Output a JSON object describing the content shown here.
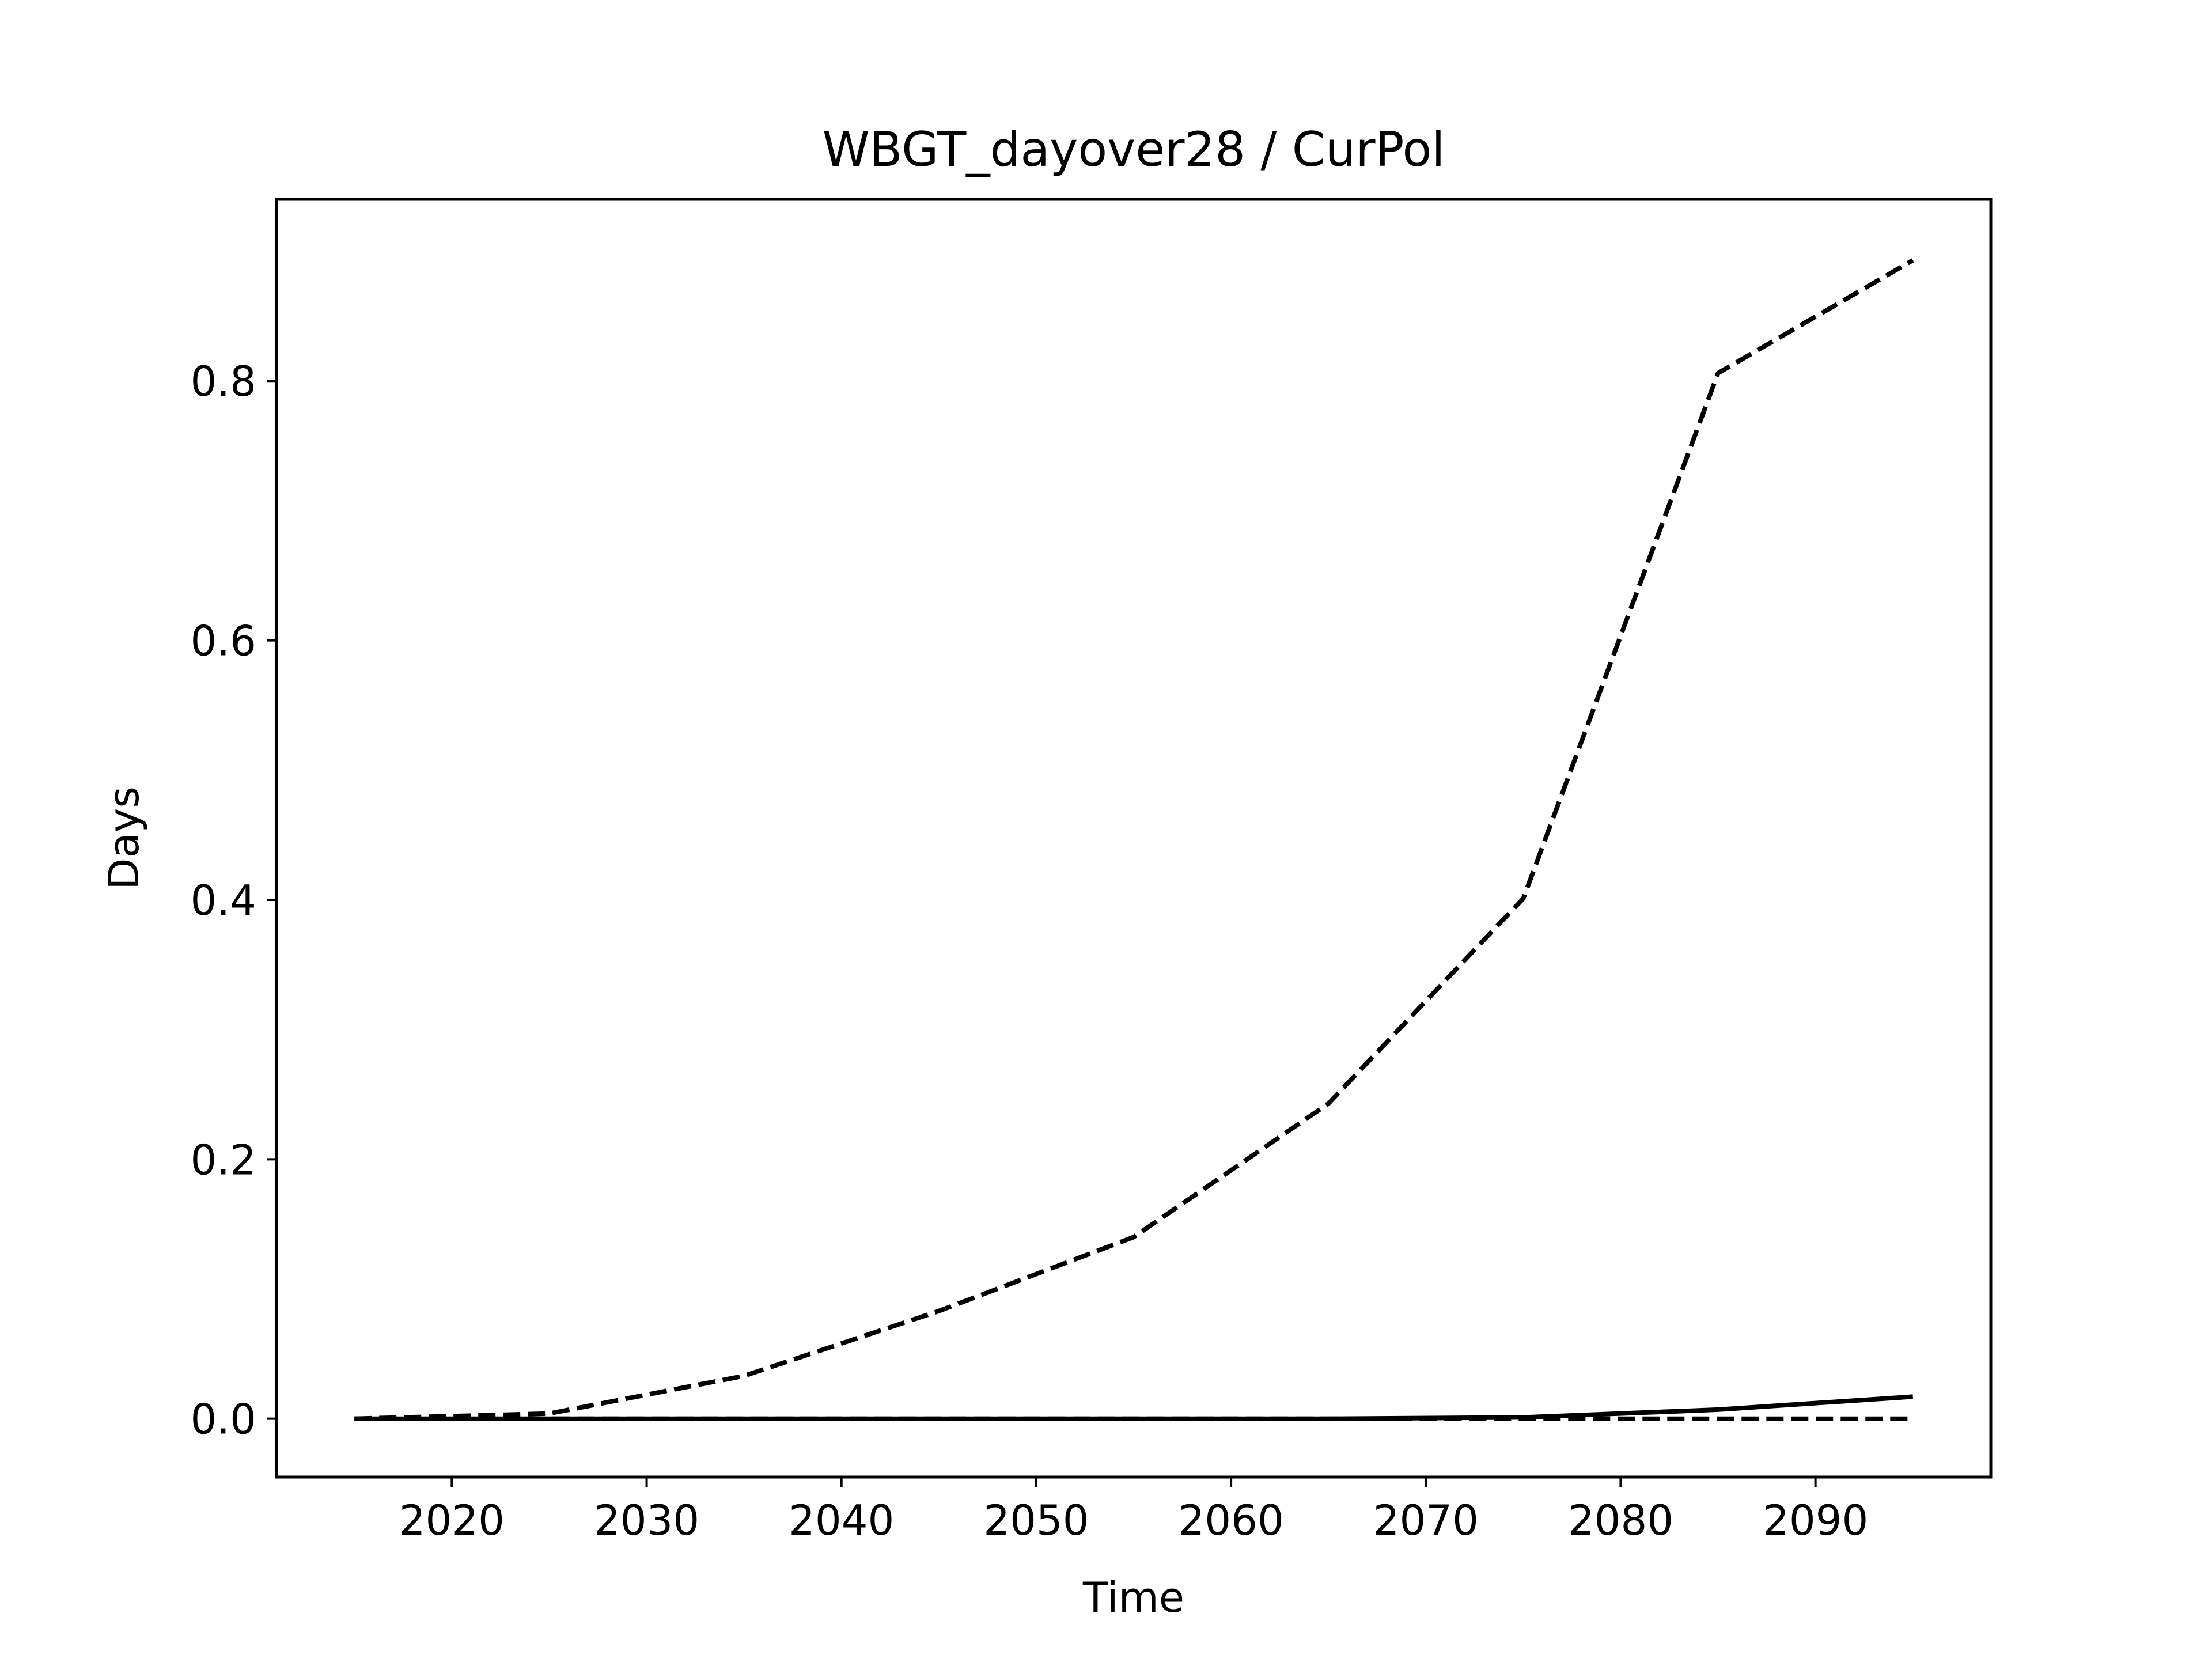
{
  "chart_data": {
    "type": "line",
    "title": "WBGT_dayover28 / CurPol",
    "xlabel": "Time",
    "ylabel": "Days",
    "xlim": [
      2011,
      2099
    ],
    "ylim": [
      -0.045,
      0.94
    ],
    "x_ticks": [
      2020,
      2030,
      2040,
      2050,
      2060,
      2070,
      2080,
      2090
    ],
    "y_ticks": [
      0.0,
      0.2,
      0.4,
      0.6,
      0.8
    ],
    "y_tick_labels": [
      "0.0",
      "0.2",
      "0.4",
      "0.6",
      "0.8"
    ],
    "grid": false,
    "legend": "none",
    "x": [
      2015,
      2025,
      2035,
      2045,
      2055,
      2065,
      2075,
      2085,
      2095
    ],
    "series": [
      {
        "style": "dashed",
        "color": "#000000",
        "values": [
          0.0,
          0.004,
          0.033,
          0.083,
          0.14,
          0.243,
          0.401,
          0.806,
          0.893
        ]
      },
      {
        "style": "solid",
        "color": "#000000",
        "values": [
          0.0,
          0.0,
          0.0,
          0.0,
          0.0,
          0.0,
          0.001,
          0.007,
          0.017
        ]
      },
      {
        "style": "dashed",
        "color": "#000000",
        "values": [
          0.0,
          0.0,
          0.0,
          0.0,
          0.0,
          0.0,
          0.0,
          0.0,
          0.0
        ]
      }
    ]
  }
}
